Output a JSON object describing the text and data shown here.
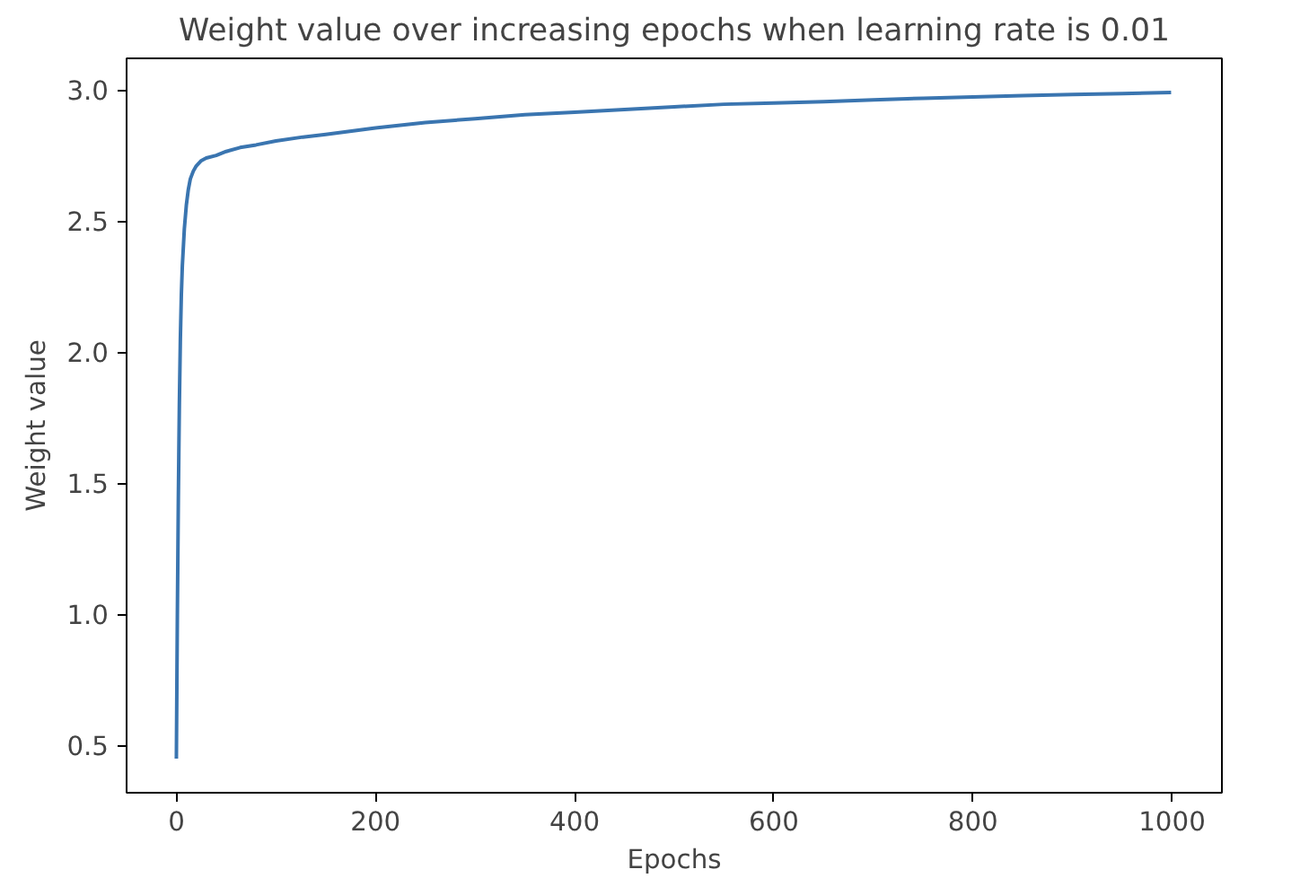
{
  "chart_data": {
    "type": "line",
    "title": "Weight value over increasing epochs when learning rate is 0.01",
    "xlabel": "Epochs",
    "ylabel": "Weight value",
    "x": [
      0,
      1,
      2,
      3,
      4,
      5,
      6,
      8,
      10,
      12,
      14,
      17,
      20,
      25,
      30,
      40,
      50,
      64,
      80,
      100,
      127,
      150,
      200,
      250,
      300,
      350,
      400,
      450,
      500,
      550,
      600,
      650,
      700,
      750,
      800,
      850,
      900,
      950,
      999
    ],
    "series": [
      {
        "color": "#3a75b0",
        "values": [
          0.45,
          1.0,
          1.45,
          1.8,
          2.05,
          2.22,
          2.33,
          2.47,
          2.56,
          2.62,
          2.66,
          2.69,
          2.71,
          2.73,
          2.74,
          2.75,
          2.765,
          2.78,
          2.79,
          2.805,
          2.82,
          2.83,
          2.855,
          2.875,
          2.89,
          2.905,
          2.915,
          2.925,
          2.935,
          2.945,
          2.95,
          2.955,
          2.962,
          2.968,
          2.973,
          2.978,
          2.982,
          2.986,
          2.99
        ]
      }
    ],
    "xlim": [
      -50,
      1050
    ],
    "ylim": [
      0.32,
      3.12
    ],
    "xticks": [
      0,
      200,
      400,
      600,
      800,
      1000
    ],
    "yticks": [
      0.5,
      {
        "value": 1,
        "label": "1.0"
      },
      1.5,
      {
        "value": 2,
        "label": "2.0"
      },
      2.5,
      {
        "value": 3,
        "label": "3.0"
      }
    ],
    "grid": false,
    "line_style": "solid",
    "marker": "none"
  }
}
